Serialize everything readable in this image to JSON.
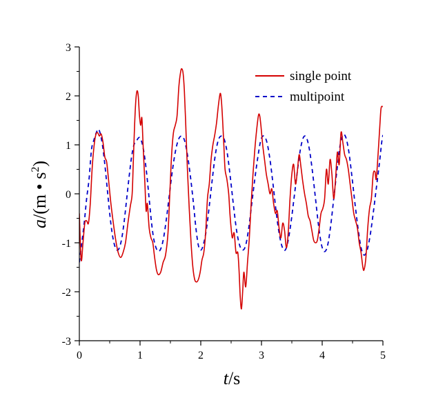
{
  "chart_data": {
    "type": "line",
    "xlabel_italic": "t",
    "xlabel_rest": "/s",
    "ylabel_italic": "a",
    "ylabel_rest": "/(m • s",
    "ylabel_sup": "2",
    "ylabel_close": ")",
    "xlim": [
      0,
      5
    ],
    "ylim": [
      -3,
      3
    ],
    "x_ticks": [
      0,
      1,
      2,
      3,
      4,
      5
    ],
    "x_tick_labels": [
      "0",
      "1",
      "2",
      "3",
      "4",
      "5"
    ],
    "y_ticks": [
      -3,
      -2,
      -1,
      0,
      1,
      2,
      3
    ],
    "y_tick_labels": [
      "-3",
      "-2",
      "-1",
      "0",
      "1",
      "2",
      "3"
    ],
    "grid": false,
    "legend_position": "top-right",
    "series": [
      {
        "name": "single point",
        "color": "#d40000",
        "style": "solid",
        "points": [
          [
            0.0,
            -0.4
          ],
          [
            0.03,
            -1.35
          ],
          [
            0.06,
            -1.0
          ],
          [
            0.09,
            -0.6
          ],
          [
            0.12,
            -0.55
          ],
          [
            0.15,
            -0.6
          ],
          [
            0.18,
            -0.2
          ],
          [
            0.21,
            0.5
          ],
          [
            0.24,
            0.95
          ],
          [
            0.27,
            1.2
          ],
          [
            0.3,
            1.25
          ],
          [
            0.33,
            1.18
          ],
          [
            0.36,
            1.22
          ],
          [
            0.39,
            1.05
          ],
          [
            0.42,
            0.75
          ],
          [
            0.45,
            0.65
          ],
          [
            0.48,
            0.3
          ],
          [
            0.52,
            -0.2
          ],
          [
            0.56,
            -0.6
          ],
          [
            0.6,
            -0.95
          ],
          [
            0.64,
            -1.2
          ],
          [
            0.68,
            -1.3
          ],
          [
            0.72,
            -1.2
          ],
          [
            0.76,
            -1.0
          ],
          [
            0.8,
            -0.6
          ],
          [
            0.84,
            -0.25
          ],
          [
            0.87,
            0.0
          ],
          [
            0.89,
            0.7
          ],
          [
            0.91,
            1.4
          ],
          [
            0.93,
            1.9
          ],
          [
            0.95,
            2.1
          ],
          [
            0.97,
            2.0
          ],
          [
            0.99,
            1.6
          ],
          [
            1.01,
            1.4
          ],
          [
            1.03,
            1.55
          ],
          [
            1.05,
            1.0
          ],
          [
            1.08,
            0.2
          ],
          [
            1.1,
            -0.35
          ],
          [
            1.12,
            -0.2
          ],
          [
            1.15,
            -0.7
          ],
          [
            1.18,
            -0.9
          ],
          [
            1.21,
            -1.0
          ],
          [
            1.24,
            -1.3
          ],
          [
            1.27,
            -1.55
          ],
          [
            1.3,
            -1.65
          ],
          [
            1.34,
            -1.6
          ],
          [
            1.38,
            -1.4
          ],
          [
            1.42,
            -1.25
          ],
          [
            1.46,
            -0.8
          ],
          [
            1.49,
            0.0
          ],
          [
            1.52,
            0.8
          ],
          [
            1.55,
            1.25
          ],
          [
            1.58,
            1.4
          ],
          [
            1.61,
            1.6
          ],
          [
            1.64,
            2.2
          ],
          [
            1.67,
            2.5
          ],
          [
            1.69,
            2.55
          ],
          [
            1.71,
            2.45
          ],
          [
            1.73,
            2.1
          ],
          [
            1.75,
            1.5
          ],
          [
            1.78,
            0.5
          ],
          [
            1.81,
            -0.3
          ],
          [
            1.84,
            -1.0
          ],
          [
            1.87,
            -1.5
          ],
          [
            1.9,
            -1.75
          ],
          [
            1.93,
            -1.8
          ],
          [
            1.96,
            -1.75
          ],
          [
            1.99,
            -1.6
          ],
          [
            2.02,
            -1.35
          ],
          [
            2.05,
            -1.2
          ],
          [
            2.08,
            -0.8
          ],
          [
            2.11,
            -0.1
          ],
          [
            2.14,
            0.2
          ],
          [
            2.17,
            0.7
          ],
          [
            2.2,
            1.0
          ],
          [
            2.23,
            1.2
          ],
          [
            2.26,
            1.45
          ],
          [
            2.29,
            1.8
          ],
          [
            2.32,
            2.05
          ],
          [
            2.34,
            1.9
          ],
          [
            2.36,
            1.5
          ],
          [
            2.38,
            1.0
          ],
          [
            2.4,
            0.5
          ],
          [
            2.43,
            0.3
          ],
          [
            2.46,
            0.0
          ],
          [
            2.48,
            -0.4
          ],
          [
            2.5,
            -0.7
          ],
          [
            2.52,
            -0.9
          ],
          [
            2.55,
            -0.8
          ],
          [
            2.58,
            -1.2
          ],
          [
            2.61,
            -1.2
          ],
          [
            2.63,
            -1.55
          ],
          [
            2.65,
            -2.1
          ],
          [
            2.67,
            -2.35
          ],
          [
            2.69,
            -2.0
          ],
          [
            2.71,
            -1.6
          ],
          [
            2.74,
            -1.9
          ],
          [
            2.77,
            -1.4
          ],
          [
            2.8,
            -0.9
          ],
          [
            2.83,
            -0.2
          ],
          [
            2.86,
            0.4
          ],
          [
            2.89,
            0.9
          ],
          [
            2.92,
            1.3
          ],
          [
            2.95,
            1.6
          ],
          [
            2.97,
            1.6
          ],
          [
            2.99,
            1.4
          ],
          [
            3.02,
            1.0
          ],
          [
            3.05,
            0.7
          ],
          [
            3.08,
            0.4
          ],
          [
            3.11,
            0.2
          ],
          [
            3.14,
            0.0
          ],
          [
            3.17,
            0.1
          ],
          [
            3.2,
            -0.2
          ],
          [
            3.23,
            -0.4
          ],
          [
            3.26,
            -0.35
          ],
          [
            3.29,
            -0.7
          ],
          [
            3.32,
            -0.9
          ],
          [
            3.35,
            -0.6
          ],
          [
            3.38,
            -0.75
          ],
          [
            3.41,
            -1.1
          ],
          [
            3.44,
            -0.8
          ],
          [
            3.47,
            -0.1
          ],
          [
            3.5,
            0.4
          ],
          [
            3.53,
            0.6
          ],
          [
            3.56,
            0.2
          ],
          [
            3.59,
            0.45
          ],
          [
            3.62,
            0.8
          ],
          [
            3.65,
            0.55
          ],
          [
            3.68,
            0.25
          ],
          [
            3.71,
            0.0
          ],
          [
            3.74,
            -0.2
          ],
          [
            3.77,
            -0.45
          ],
          [
            3.8,
            -0.55
          ],
          [
            3.83,
            -0.75
          ],
          [
            3.86,
            -0.95
          ],
          [
            3.89,
            -1.0
          ],
          [
            3.92,
            -0.95
          ],
          [
            3.95,
            -0.7
          ],
          [
            3.98,
            -0.4
          ],
          [
            4.01,
            -0.3
          ],
          [
            4.04,
            -0.1
          ],
          [
            4.07,
            0.5
          ],
          [
            4.1,
            0.2
          ],
          [
            4.13,
            0.7
          ],
          [
            4.16,
            0.4
          ],
          [
            4.19,
            -0.1
          ],
          [
            4.22,
            0.3
          ],
          [
            4.25,
            0.85
          ],
          [
            4.28,
            0.6
          ],
          [
            4.31,
            1.25
          ],
          [
            4.34,
            1.05
          ],
          [
            4.37,
            0.8
          ],
          [
            4.4,
            0.7
          ],
          [
            4.43,
            0.5
          ],
          [
            4.46,
            0.2
          ],
          [
            4.49,
            -0.1
          ],
          [
            4.52,
            -0.4
          ],
          [
            4.55,
            -0.55
          ],
          [
            4.58,
            -0.7
          ],
          [
            4.61,
            -1.0
          ],
          [
            4.64,
            -1.2
          ],
          [
            4.67,
            -1.5
          ],
          [
            4.69,
            -1.55
          ],
          [
            4.72,
            -1.3
          ],
          [
            4.75,
            -0.7
          ],
          [
            4.78,
            -0.3
          ],
          [
            4.81,
            -0.1
          ],
          [
            4.84,
            0.4
          ],
          [
            4.87,
            0.45
          ],
          [
            4.89,
            0.3
          ],
          [
            4.92,
            0.8
          ],
          [
            4.95,
            1.4
          ],
          [
            4.97,
            1.75
          ],
          [
            5.0,
            1.78
          ]
        ]
      },
      {
        "name": "multipoint",
        "color": "#0000c8",
        "style": "dashed",
        "points": [
          [
            0.0,
            -1.4
          ],
          [
            0.04,
            -1.0
          ],
          [
            0.08,
            -0.6
          ],
          [
            0.12,
            -0.1
          ],
          [
            0.16,
            0.3
          ],
          [
            0.2,
            0.9
          ],
          [
            0.24,
            1.1
          ],
          [
            0.28,
            1.25
          ],
          [
            0.31,
            1.32
          ],
          [
            0.34,
            1.25
          ],
          [
            0.38,
            1.0
          ],
          [
            0.42,
            0.6
          ],
          [
            0.46,
            0.1
          ],
          [
            0.5,
            -0.4
          ],
          [
            0.54,
            -0.8
          ],
          [
            0.58,
            -1.05
          ],
          [
            0.62,
            -1.15
          ],
          [
            0.66,
            -1.1
          ],
          [
            0.7,
            -0.9
          ],
          [
            0.74,
            -0.55
          ],
          [
            0.78,
            -0.1
          ],
          [
            0.82,
            0.35
          ],
          [
            0.86,
            0.75
          ],
          [
            0.9,
            1.0
          ],
          [
            0.95,
            1.1
          ],
          [
            0.99,
            1.15
          ],
          [
            1.03,
            1.05
          ],
          [
            1.07,
            0.8
          ],
          [
            1.11,
            0.4
          ],
          [
            1.15,
            -0.1
          ],
          [
            1.19,
            -0.6
          ],
          [
            1.23,
            -0.95
          ],
          [
            1.28,
            -1.15
          ],
          [
            1.33,
            -1.15
          ],
          [
            1.38,
            -0.95
          ],
          [
            1.43,
            -0.55
          ],
          [
            1.48,
            -0.05
          ],
          [
            1.53,
            0.45
          ],
          [
            1.58,
            0.85
          ],
          [
            1.63,
            1.1
          ],
          [
            1.68,
            1.18
          ],
          [
            1.73,
            1.1
          ],
          [
            1.78,
            0.8
          ],
          [
            1.83,
            0.35
          ],
          [
            1.88,
            -0.2
          ],
          [
            1.92,
            -0.7
          ],
          [
            1.96,
            -1.05
          ],
          [
            2.0,
            -1.15
          ],
          [
            2.04,
            -1.05
          ],
          [
            2.09,
            -0.75
          ],
          [
            2.14,
            -0.25
          ],
          [
            2.19,
            0.3
          ],
          [
            2.24,
            0.8
          ],
          [
            2.29,
            1.1
          ],
          [
            2.34,
            1.18
          ],
          [
            2.39,
            1.1
          ],
          [
            2.44,
            0.8
          ],
          [
            2.49,
            0.3
          ],
          [
            2.54,
            -0.25
          ],
          [
            2.59,
            -0.75
          ],
          [
            2.64,
            -1.05
          ],
          [
            2.69,
            -1.15
          ],
          [
            2.74,
            -1.05
          ],
          [
            2.79,
            -0.7
          ],
          [
            2.84,
            -0.2
          ],
          [
            2.89,
            0.3
          ],
          [
            2.94,
            0.75
          ],
          [
            2.99,
            1.1
          ],
          [
            3.04,
            1.18
          ],
          [
            3.09,
            1.05
          ],
          [
            3.14,
            0.7
          ],
          [
            3.19,
            0.2
          ],
          [
            3.24,
            -0.35
          ],
          [
            3.29,
            -0.8
          ],
          [
            3.34,
            -1.08
          ],
          [
            3.39,
            -1.15
          ],
          [
            3.44,
            -0.95
          ],
          [
            3.49,
            -0.55
          ],
          [
            3.54,
            -0.05
          ],
          [
            3.59,
            0.45
          ],
          [
            3.64,
            0.9
          ],
          [
            3.69,
            1.15
          ],
          [
            3.74,
            1.15
          ],
          [
            3.79,
            0.9
          ],
          [
            3.84,
            0.45
          ],
          [
            3.89,
            -0.1
          ],
          [
            3.94,
            -0.65
          ],
          [
            3.99,
            -1.05
          ],
          [
            4.04,
            -1.18
          ],
          [
            4.09,
            -1.05
          ],
          [
            4.14,
            -0.65
          ],
          [
            4.19,
            -0.1
          ],
          [
            4.24,
            0.45
          ],
          [
            4.29,
            0.95
          ],
          [
            4.34,
            1.2
          ],
          [
            4.39,
            1.15
          ],
          [
            4.44,
            0.85
          ],
          [
            4.49,
            0.35
          ],
          [
            4.54,
            -0.2
          ],
          [
            4.59,
            -0.7
          ],
          [
            4.64,
            -1.1
          ],
          [
            4.69,
            -1.25
          ],
          [
            4.74,
            -1.15
          ],
          [
            4.79,
            -0.85
          ],
          [
            4.84,
            -0.4
          ],
          [
            4.89,
            0.1
          ],
          [
            4.94,
            0.6
          ],
          [
            4.98,
            1.05
          ],
          [
            5.0,
            1.2
          ]
        ]
      }
    ]
  }
}
